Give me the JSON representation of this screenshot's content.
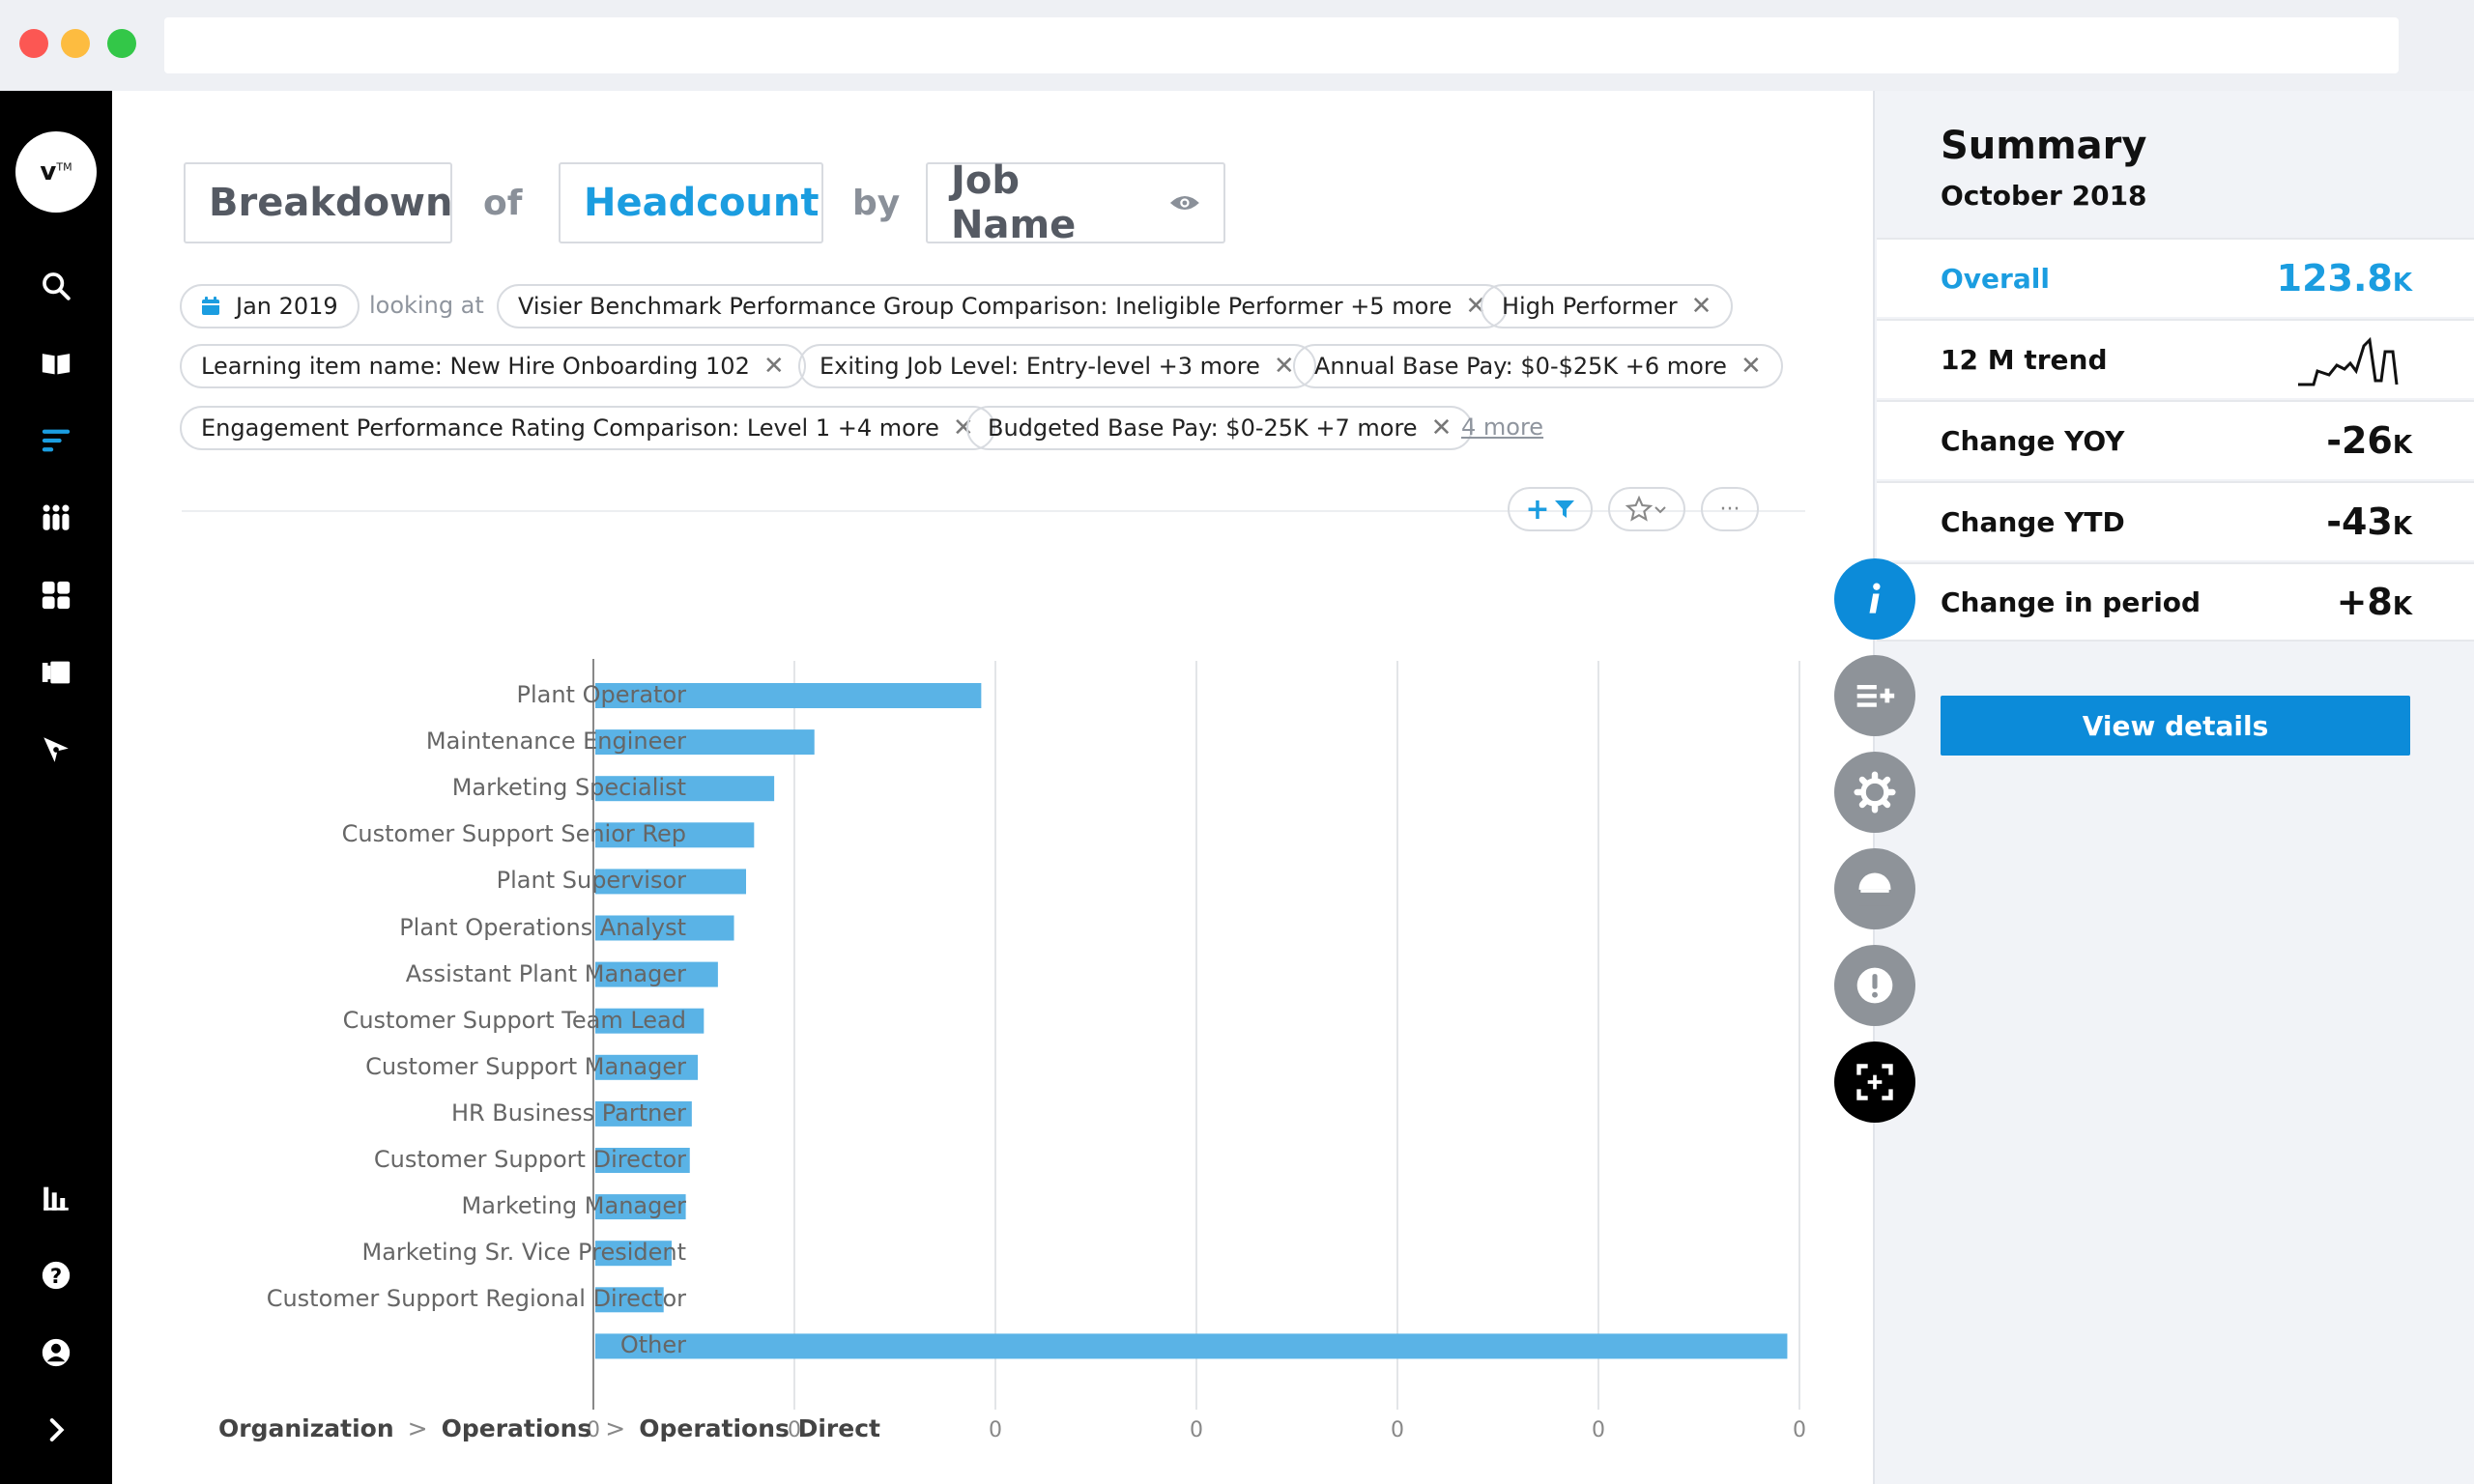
{
  "header": {
    "breakdown": "Breakdown",
    "of": "of",
    "metric": "Headcount",
    "by": "by",
    "dimension": "Job Name"
  },
  "filters": {
    "date": "Jan 2019",
    "looking_at": "looking at",
    "chips": [
      "Visier Benchmark Performance Group Comparison: Ineligible Performer +5 more",
      "High Performer",
      "Learning item name: New Hire Onboarding 102",
      "Exiting Job Level: Entry-level +3 more",
      "Annual Base Pay: $0-$25K +6 more",
      "Engagement Performance Rating Comparison: Level 1 +4 more",
      "Budgeted Base Pay: $0-25K +7 more"
    ],
    "more": "4 more"
  },
  "toolbar": {
    "add_filter": "+",
    "more": "···"
  },
  "chart_data": {
    "type": "bar",
    "orientation": "horizontal",
    "categories": [
      "Plant Operator",
      "Maintenance Engineer",
      "Marketing Specialist",
      "Customer Support Senior Rep",
      "Plant Supervisor",
      "Plant Operations Analyst",
      "Assistant Plant Manager",
      "Customer Support Team Lead",
      "Customer Support Manager",
      "HR Business Partner",
      "Customer Support Director",
      "Marketing Manager",
      "Marketing Sr. Vice President",
      "Customer Support Regional Director",
      "Other"
    ],
    "values": [
      1.92,
      1.09,
      0.89,
      0.79,
      0.75,
      0.69,
      0.61,
      0.54,
      0.51,
      0.48,
      0.47,
      0.45,
      0.38,
      0.34,
      5.93
    ],
    "tick_labels": [
      "0",
      "0",
      "0",
      "0",
      "0",
      "0",
      "0"
    ],
    "xlim": [
      0,
      6
    ],
    "grid": true,
    "bar_color": "#5ab3e6"
  },
  "breadcrumb": [
    "Organization",
    "Operations",
    "Operations Direct"
  ],
  "summary": {
    "title": "Summary",
    "period": "October 2018",
    "overall_label": "Overall",
    "overall_value": "123.8",
    "overall_unit": "K",
    "trend_label": "12 M trend",
    "yoy_label": "Change YOY",
    "yoy_value": "-26",
    "yoy_unit": "K",
    "ytd_label": "Change YTD",
    "ytd_value": "-43",
    "ytd_unit": "K",
    "period_label": "Change in period",
    "period_value": "+8",
    "period_unit": "K",
    "details_button": "View details"
  },
  "colors": {
    "accent": "#1b9de0",
    "button": "#0c8bd9",
    "bar": "#5ab3e6"
  }
}
